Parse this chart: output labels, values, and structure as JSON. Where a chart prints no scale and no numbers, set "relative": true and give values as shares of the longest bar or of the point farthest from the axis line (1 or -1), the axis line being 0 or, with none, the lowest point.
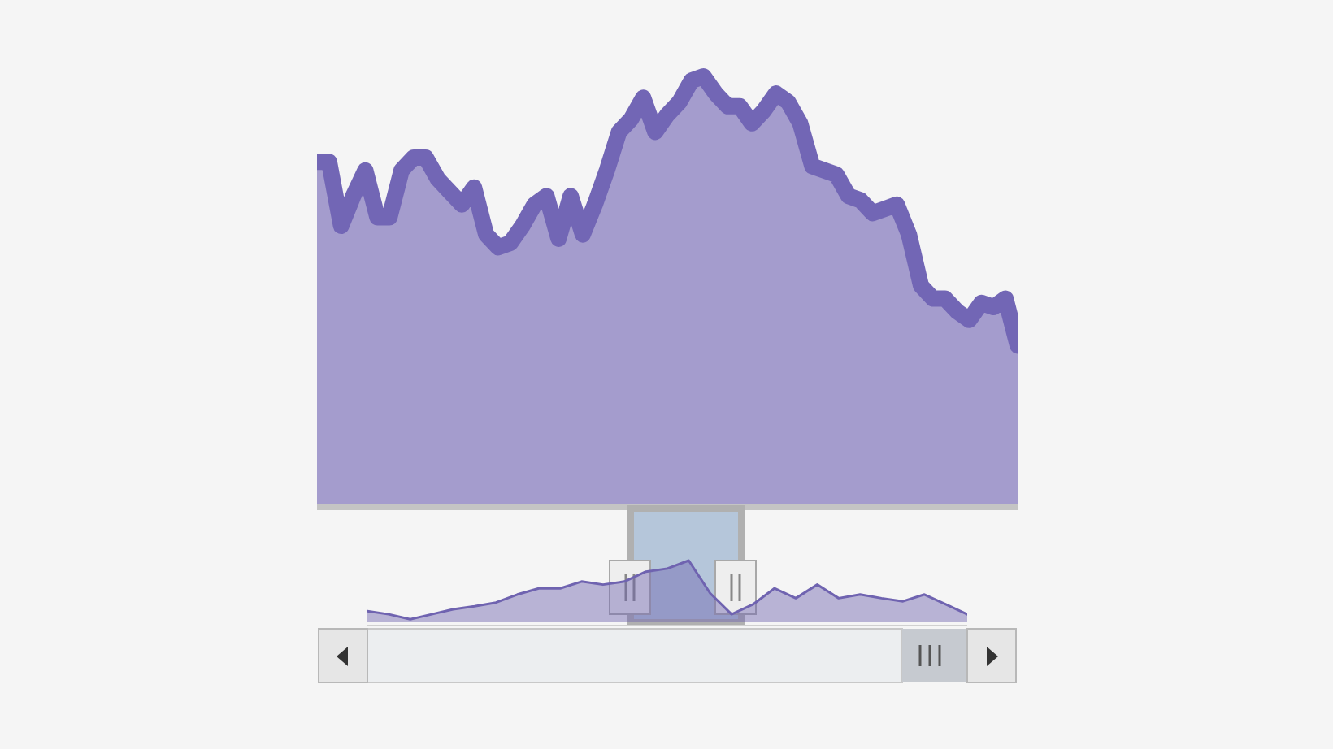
{
  "chart_data": [
    {
      "type": "area",
      "relative": true,
      "categories": [
        null,
        null,
        null,
        null,
        null,
        null,
        null,
        null,
        null,
        null,
        null,
        null,
        null,
        null,
        null,
        null,
        null,
        null,
        null,
        null,
        null,
        null,
        null,
        null,
        null,
        null,
        null,
        null,
        null,
        null,
        null,
        null,
        null,
        null,
        null,
        null,
        null,
        null,
        null,
        null,
        null,
        null,
        null,
        null,
        null,
        null,
        null,
        null,
        null,
        null,
        null,
        null,
        null,
        null,
        null,
        null,
        null,
        null,
        null
      ],
      "series": [
        {
          "color": "#7266b5",
          "values": [
            0.8,
            0.8,
            0.65,
            0.72,
            0.78,
            0.67,
            0.67,
            0.78,
            0.81,
            0.81,
            0.76,
            0.73,
            0.7,
            0.74,
            0.63,
            0.6,
            0.61,
            0.65,
            0.7,
            0.72,
            0.62,
            0.72,
            0.63,
            0.7,
            0.78,
            0.87,
            0.9,
            0.95,
            0.87,
            0.91,
            0.94,
            0.99,
            1,
            0.96,
            0.93,
            0.93,
            0.89,
            0.92,
            0.96,
            0.94,
            0.89,
            0.79,
            0.78,
            0.77,
            0.72,
            0.71,
            0.68,
            0.69,
            0.7,
            0.63,
            0.51,
            0.48,
            0.48,
            0.45,
            0.43,
            0.47,
            0.46,
            0.48,
            0.37
          ]
        }
      ]
    },
    {
      "type": "area",
      "relative": true,
      "categories": [
        null,
        null,
        null,
        null,
        null,
        null,
        null,
        null,
        null,
        null,
        null,
        null,
        null,
        null,
        null,
        null,
        null,
        null,
        null,
        null,
        null,
        null,
        null,
        null,
        null,
        null,
        null,
        null,
        null
      ],
      "series": [
        {
          "color": "#6f63b0",
          "values": [
            0.18,
            0.13,
            0.05,
            0.13,
            0.21,
            0.26,
            0.32,
            0.45,
            0.55,
            0.55,
            0.66,
            0.61,
            0.66,
            0.82,
            0.87,
            1,
            0.47,
            0.13,
            0.29,
            0.55,
            0.39,
            0.61,
            0.39,
            0.45,
            0.39,
            0.34,
            0.45,
            0.29,
            0.13
          ]
        }
      ]
    }
  ]
}
